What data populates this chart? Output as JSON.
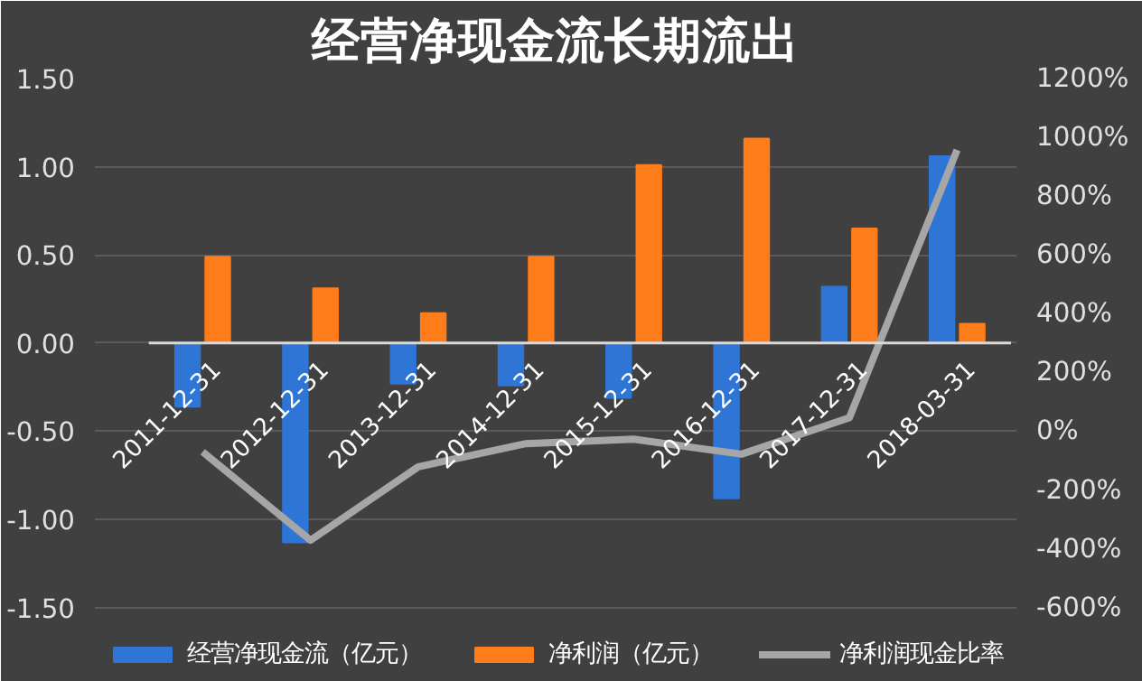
{
  "chart_data": {
    "type": "bar",
    "title": "经营净现金流长期流出",
    "categories": [
      "2011-12-31",
      "2012-12-31",
      "2013-12-31",
      "2014-12-31",
      "2015-12-31",
      "2016-12-31",
      "2017-12-31",
      "2018-03-31"
    ],
    "series": [
      {
        "name": "经营净现金流（亿元）",
        "color": "#2e75d6",
        "values": [
          -0.36,
          -1.13,
          -0.23,
          -0.24,
          -0.31,
          -0.88,
          0.32,
          1.06
        ]
      },
      {
        "name": "净利润（亿元）",
        "color": "#ff7c1a",
        "values": [
          0.49,
          0.31,
          0.17,
          0.49,
          1.01,
          1.16,
          0.65,
          0.11
        ]
      },
      {
        "name": "净利润现金比率",
        "type": "line",
        "axis": "y2",
        "color": "#a6a6a6",
        "values": [
          -70,
          -371,
          -121,
          -42,
          -27,
          -78,
          46,
          957
        ]
      }
    ],
    "ylim": [
      -1.5,
      1.5
    ],
    "yticks": [
      {
        "value": -1.5,
        "label": "-1.50"
      },
      {
        "value": -1.0,
        "label": "-1.00"
      },
      {
        "value": -0.5,
        "label": "-0.50"
      },
      {
        "value": 0,
        "label": "0.00"
      },
      {
        "value": 0.5,
        "label": "0.50"
      },
      {
        "value": 1.0,
        "label": "1.00"
      },
      {
        "value": 1.5,
        "label": "1.50"
      }
    ],
    "y2lim": [
      -600,
      1200
    ],
    "y2ticks": [
      {
        "value": -600,
        "label": "-600%"
      },
      {
        "value": -400,
        "label": "-400%"
      },
      {
        "value": -200,
        "label": "-200%"
      },
      {
        "value": 0,
        "label": "0%"
      },
      {
        "value": 200,
        "label": "200%"
      },
      {
        "value": 400,
        "label": "400%"
      },
      {
        "value": 600,
        "label": "600%"
      },
      {
        "value": 800,
        "label": "800%"
      },
      {
        "value": 1000,
        "label": "1000%"
      },
      {
        "value": 1200,
        "label": "1200%"
      }
    ],
    "grid": "y",
    "legend": "bottom",
    "line_style": "solid",
    "marker": "none"
  }
}
